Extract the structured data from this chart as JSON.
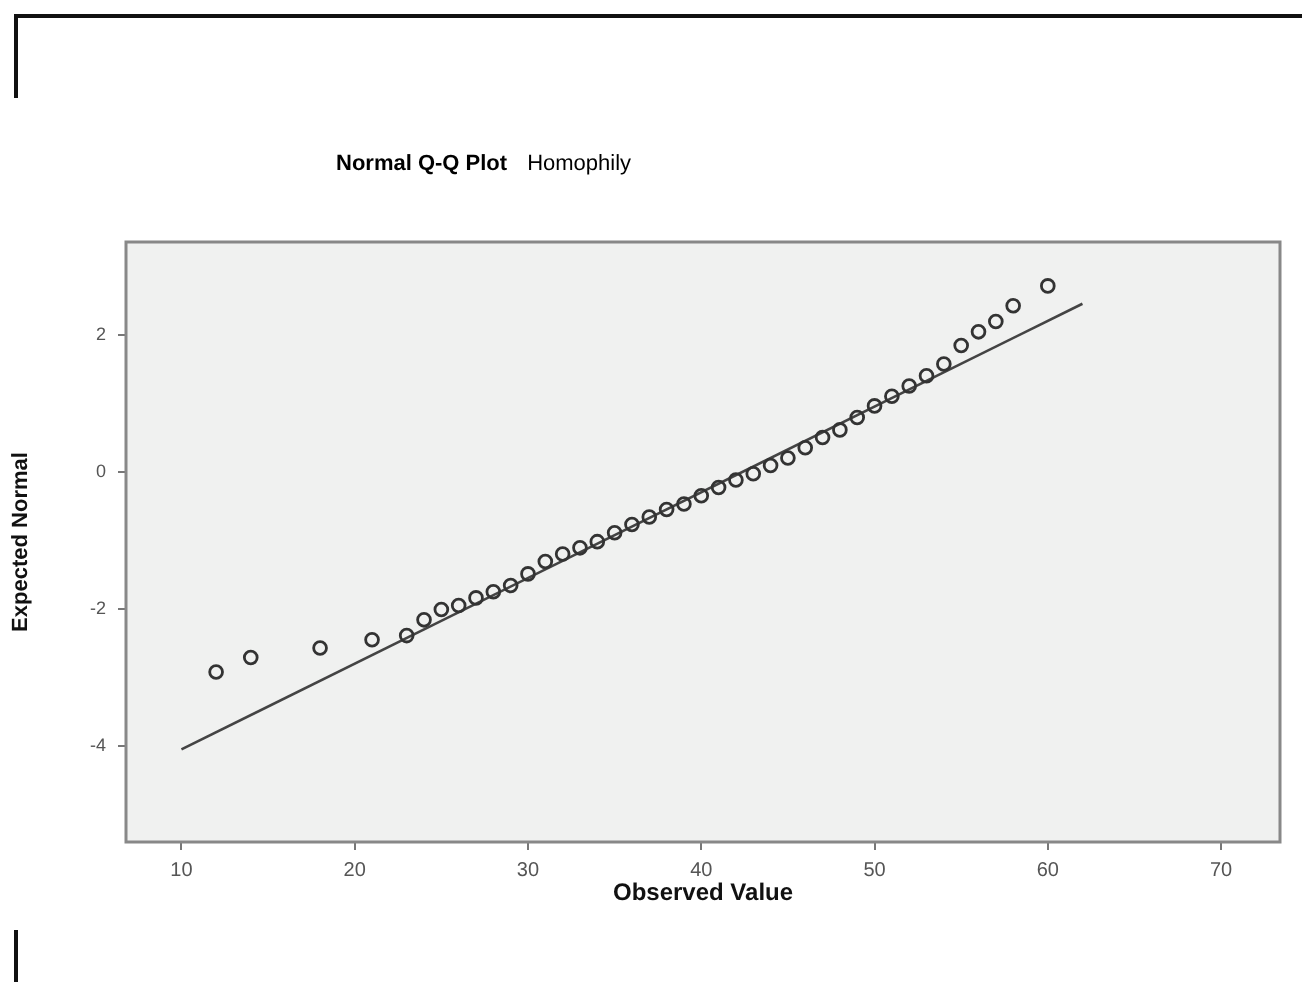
{
  "chart_data": {
    "type": "scatter",
    "title": "Normal Q-Q Plot",
    "subtitle": "Homophily",
    "xlabel": "Observed Value",
    "ylabel": "Expected Normal",
    "xlim": [
      6.8,
      73.4
    ],
    "xticks": [
      10,
      20,
      30,
      40,
      50,
      60,
      70
    ],
    "ylim": [
      -5.4,
      3.35
    ],
    "yticks": [
      -4,
      -2,
      0,
      2
    ],
    "grid": false,
    "legend": false,
    "series": [
      {
        "marker": "circle",
        "color": "#333333",
        "x": [
          12,
          14,
          18,
          21,
          23,
          24,
          25,
          26,
          27,
          28,
          29,
          30,
          31,
          32,
          33,
          34,
          35,
          36,
          37,
          38,
          39,
          40,
          41,
          42,
          43,
          44,
          45,
          46,
          47,
          48,
          49,
          50,
          51,
          52,
          53,
          54,
          55,
          56,
          57,
          58,
          60
        ],
        "values": [
          -2.92,
          -2.71,
          -2.57,
          -2.45,
          -2.39,
          -2.16,
          -2.01,
          -1.95,
          -1.84,
          -1.75,
          -1.66,
          -1.49,
          -1.31,
          -1.2,
          -1.11,
          -1.02,
          -0.89,
          -0.77,
          -0.66,
          -0.55,
          -0.47,
          -0.35,
          -0.23,
          -0.12,
          -0.03,
          0.09,
          0.2,
          0.35,
          0.5,
          0.61,
          0.79,
          0.96,
          1.1,
          1.25,
          1.4,
          1.57,
          1.84,
          2.04,
          2.19,
          2.42,
          2.71
        ]
      },
      {
        "type": "line",
        "color": "#444444",
        "x": [
          10,
          62
        ],
        "values": [
          -4.05,
          2.45
        ]
      }
    ]
  }
}
